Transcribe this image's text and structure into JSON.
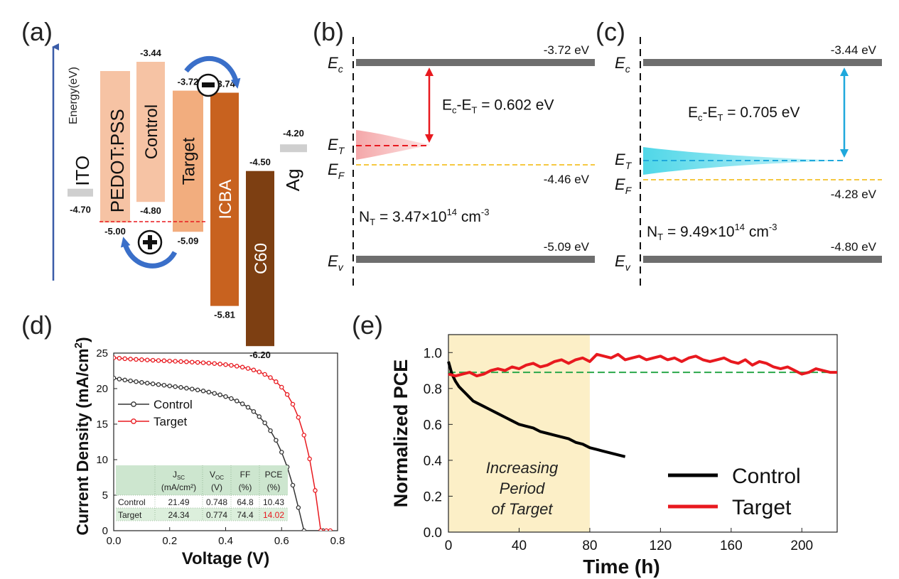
{
  "chart_data": [
    {
      "panel": "(a)",
      "type": "energy-level-diagram",
      "axis_label": "Energy(eV)",
      "levels": [
        {
          "name": "ITO",
          "top": -4.7,
          "top_label": "-4.70",
          "color": "#cfcfcf"
        },
        {
          "name": "PEDOT:PSS",
          "top": -5.0,
          "top_label": "-5.00",
          "color": "#f6c3a4"
        },
        {
          "name": "Control",
          "top": -3.44,
          "bottom": -4.8,
          "top_label": "-3.44",
          "bottom_label": "-4.80",
          "color": "#f6c3a4"
        },
        {
          "name": "Target",
          "top": -3.72,
          "bottom": -5.09,
          "top_label": "-3.72",
          "bottom_label": "-5.09",
          "color": "#f2ad7e"
        },
        {
          "name": "ICBA",
          "top": -3.74,
          "bottom": -5.81,
          "top_label": "-3.74",
          "bottom_label": "-5.81",
          "color": "#c8621f"
        },
        {
          "name": "C60",
          "top": -4.5,
          "bottom": -6.2,
          "top_label": "-4.50",
          "bottom_label": "-6.20",
          "color": "#7d3f12"
        },
        {
          "name": "Ag",
          "top": -4.2,
          "top_label": "-4.20",
          "color": "#cfcfcf"
        }
      ],
      "reference_line": -5.09
    },
    {
      "panel": "(b)",
      "type": "band-diagram",
      "labels": {
        "Ec": "E",
        "Ec_sub": "c",
        "ET": "E",
        "ET_sub": "T",
        "EF": "E",
        "EF_sub": "F",
        "Ev": "E",
        "Ev_sub": "v"
      },
      "Ec": -3.72,
      "Ec_label": "-3.72 eV",
      "EF": -4.46,
      "EF_label": "-4.46 eV",
      "Ev": -5.09,
      "Ev_label": "-5.09 eV",
      "gap_text": "E",
      "gap_sub1": "c",
      "gap_mid": "-E",
      "gap_sub2": "T",
      "gap_value": " = 0.602 eV",
      "trap_text": "N",
      "trap_sub": "T",
      "trap_value": " = 3.47×10",
      "trap_exp": "14",
      "trap_unit": " cm",
      "trap_unit_exp": "-3",
      "color": "#e8191f"
    },
    {
      "panel": "(c)",
      "type": "band-diagram",
      "labels": {
        "Ec": "E",
        "Ec_sub": "c",
        "ET": "E",
        "ET_sub": "T",
        "EF": "E",
        "EF_sub": "F",
        "Ev": "E",
        "Ev_sub": "v"
      },
      "Ec": -3.44,
      "Ec_label": "-3.44 eV",
      "EF": -4.28,
      "EF_label": "-4.28 eV",
      "Ev": -4.8,
      "Ev_label": "-4.80 eV",
      "gap_text": "E",
      "gap_sub1": "c",
      "gap_mid": "-E",
      "gap_sub2": "T",
      "gap_value": " = 0.705 eV",
      "trap_text": "N",
      "trap_sub": "T",
      "trap_value": " = 9.49×10",
      "trap_exp": "14",
      "trap_unit": " cm",
      "trap_unit_exp": "-3",
      "color": "#1fa8dc"
    },
    {
      "panel": "(d)",
      "type": "line",
      "xlabel": "Voltage (V)",
      "ylabel": "Current Density (mA/cm",
      "ylabel_sup": "2",
      "ylabel_end": ")",
      "xlim": [
        0.0,
        0.8
      ],
      "ylim": [
        0,
        25
      ],
      "xticks": [
        0.0,
        0.2,
        0.4,
        0.6,
        0.8
      ],
      "yticks": [
        0,
        5,
        10,
        15,
        20,
        25
      ],
      "legend_position": "middle-left",
      "series": [
        {
          "name": "Control",
          "color": "#333333",
          "x": [
            0.0,
            0.02,
            0.04,
            0.06,
            0.08,
            0.1,
            0.12,
            0.14,
            0.16,
            0.18,
            0.2,
            0.22,
            0.24,
            0.26,
            0.28,
            0.3,
            0.32,
            0.34,
            0.36,
            0.38,
            0.4,
            0.42,
            0.44,
            0.46,
            0.48,
            0.5,
            0.52,
            0.54,
            0.56,
            0.58,
            0.6,
            0.62,
            0.64,
            0.66,
            0.68,
            0.7,
            0.72,
            0.74,
            0.748
          ],
          "y": [
            21.49,
            21.34,
            21.21,
            21.09,
            20.98,
            20.87,
            20.77,
            20.67,
            20.57,
            20.48,
            20.38,
            20.28,
            20.17,
            20.06,
            19.94,
            19.81,
            19.67,
            19.51,
            19.33,
            19.12,
            18.88,
            18.6,
            18.26,
            17.86,
            17.37,
            16.78,
            16.06,
            15.18,
            14.08,
            12.73,
            11.05,
            8.97,
            6.4,
            3.25,
            0.0,
            -1.0,
            -2.0,
            -3.0,
            0.0
          ]
        },
        {
          "name": "Target",
          "color": "#e8191f",
          "x": [
            0.0,
            0.02,
            0.04,
            0.06,
            0.08,
            0.1,
            0.12,
            0.14,
            0.16,
            0.18,
            0.2,
            0.22,
            0.24,
            0.26,
            0.28,
            0.3,
            0.32,
            0.34,
            0.36,
            0.38,
            0.4,
            0.42,
            0.44,
            0.46,
            0.48,
            0.5,
            0.52,
            0.54,
            0.56,
            0.58,
            0.6,
            0.62,
            0.64,
            0.66,
            0.68,
            0.7,
            0.72,
            0.74,
            0.76,
            0.774
          ],
          "y": [
            24.34,
            24.27,
            24.21,
            24.16,
            24.11,
            24.07,
            24.03,
            23.99,
            23.95,
            23.92,
            23.88,
            23.85,
            23.81,
            23.77,
            23.73,
            23.69,
            23.64,
            23.59,
            23.53,
            23.46,
            23.38,
            23.28,
            23.16,
            23.02,
            22.84,
            22.62,
            22.35,
            22.0,
            21.55,
            20.97,
            20.2,
            19.17,
            17.8,
            15.95,
            13.45,
            10.11,
            5.66,
            0.0,
            0.0,
            0.0
          ]
        }
      ],
      "table": {
        "headers": [
          {
            "main": "J",
            "sub": "SC",
            "unit": "(mA/cm²)"
          },
          {
            "main": "V",
            "sub": "OC",
            "unit": "(V)"
          },
          {
            "main": "FF",
            "sub": "",
            "unit": "(%)"
          },
          {
            "main": "PCE",
            "sub": "",
            "unit": "(%)"
          }
        ],
        "rows": [
          {
            "label": "Control",
            "values": [
              "21.49",
              "0.748",
              "64.8",
              "10.43"
            ]
          },
          {
            "label": "Target",
            "values": [
              "24.34",
              "0.774",
              "74.4",
              "14.02"
            ]
          }
        ],
        "highlight_color": "#e8191f"
      }
    },
    {
      "panel": "(e)",
      "type": "line",
      "xlabel": "Time (h)",
      "ylabel": "Normalized PCE",
      "xlim": [
        0,
        220
      ],
      "ylim": [
        0.0,
        1.1
      ],
      "xticks": [
        0,
        40,
        80,
        120,
        160,
        200
      ],
      "yticks": [
        0.0,
        0.2,
        0.4,
        0.6,
        0.8,
        1.0
      ],
      "shaded_region": {
        "x": [
          0,
          80
        ],
        "text": [
          "Increasing",
          "Period",
          "of Target"
        ]
      },
      "reference_line": 0.89,
      "legend_position": "bottom-right",
      "series": [
        {
          "name": "Control",
          "color": "#000000",
          "x": [
            0,
            2,
            4,
            6,
            8,
            10,
            12,
            14,
            16,
            18,
            20,
            24,
            28,
            32,
            36,
            40,
            44,
            48,
            52,
            56,
            60,
            64,
            68,
            72,
            76,
            80,
            84,
            88,
            92,
            96,
            100
          ],
          "y": [
            0.95,
            0.88,
            0.84,
            0.81,
            0.79,
            0.77,
            0.75,
            0.73,
            0.72,
            0.71,
            0.7,
            0.68,
            0.66,
            0.64,
            0.62,
            0.6,
            0.59,
            0.58,
            0.56,
            0.55,
            0.54,
            0.53,
            0.52,
            0.5,
            0.49,
            0.47,
            0.46,
            0.45,
            0.44,
            0.43,
            0.42
          ]
        },
        {
          "name": "Target",
          "color": "#e8191f",
          "x": [
            0,
            4,
            8,
            12,
            16,
            20,
            24,
            28,
            32,
            36,
            40,
            44,
            48,
            52,
            56,
            60,
            64,
            68,
            72,
            76,
            80,
            84,
            88,
            92,
            96,
            100,
            104,
            108,
            112,
            116,
            120,
            124,
            128,
            132,
            136,
            140,
            144,
            148,
            152,
            156,
            160,
            164,
            168,
            172,
            176,
            180,
            184,
            188,
            192,
            196,
            200,
            204,
            208,
            212,
            216,
            220
          ],
          "y": [
            0.88,
            0.87,
            0.88,
            0.89,
            0.87,
            0.88,
            0.9,
            0.91,
            0.9,
            0.92,
            0.91,
            0.93,
            0.94,
            0.92,
            0.93,
            0.95,
            0.96,
            0.94,
            0.96,
            0.97,
            0.95,
            0.99,
            0.98,
            0.97,
            0.99,
            0.96,
            0.97,
            0.98,
            0.96,
            0.97,
            0.98,
            0.96,
            0.97,
            0.95,
            0.97,
            0.98,
            0.96,
            0.95,
            0.96,
            0.97,
            0.95,
            0.94,
            0.96,
            0.93,
            0.95,
            0.94,
            0.92,
            0.91,
            0.92,
            0.9,
            0.88,
            0.89,
            0.91,
            0.9,
            0.89,
            0.89
          ]
        }
      ]
    }
  ]
}
